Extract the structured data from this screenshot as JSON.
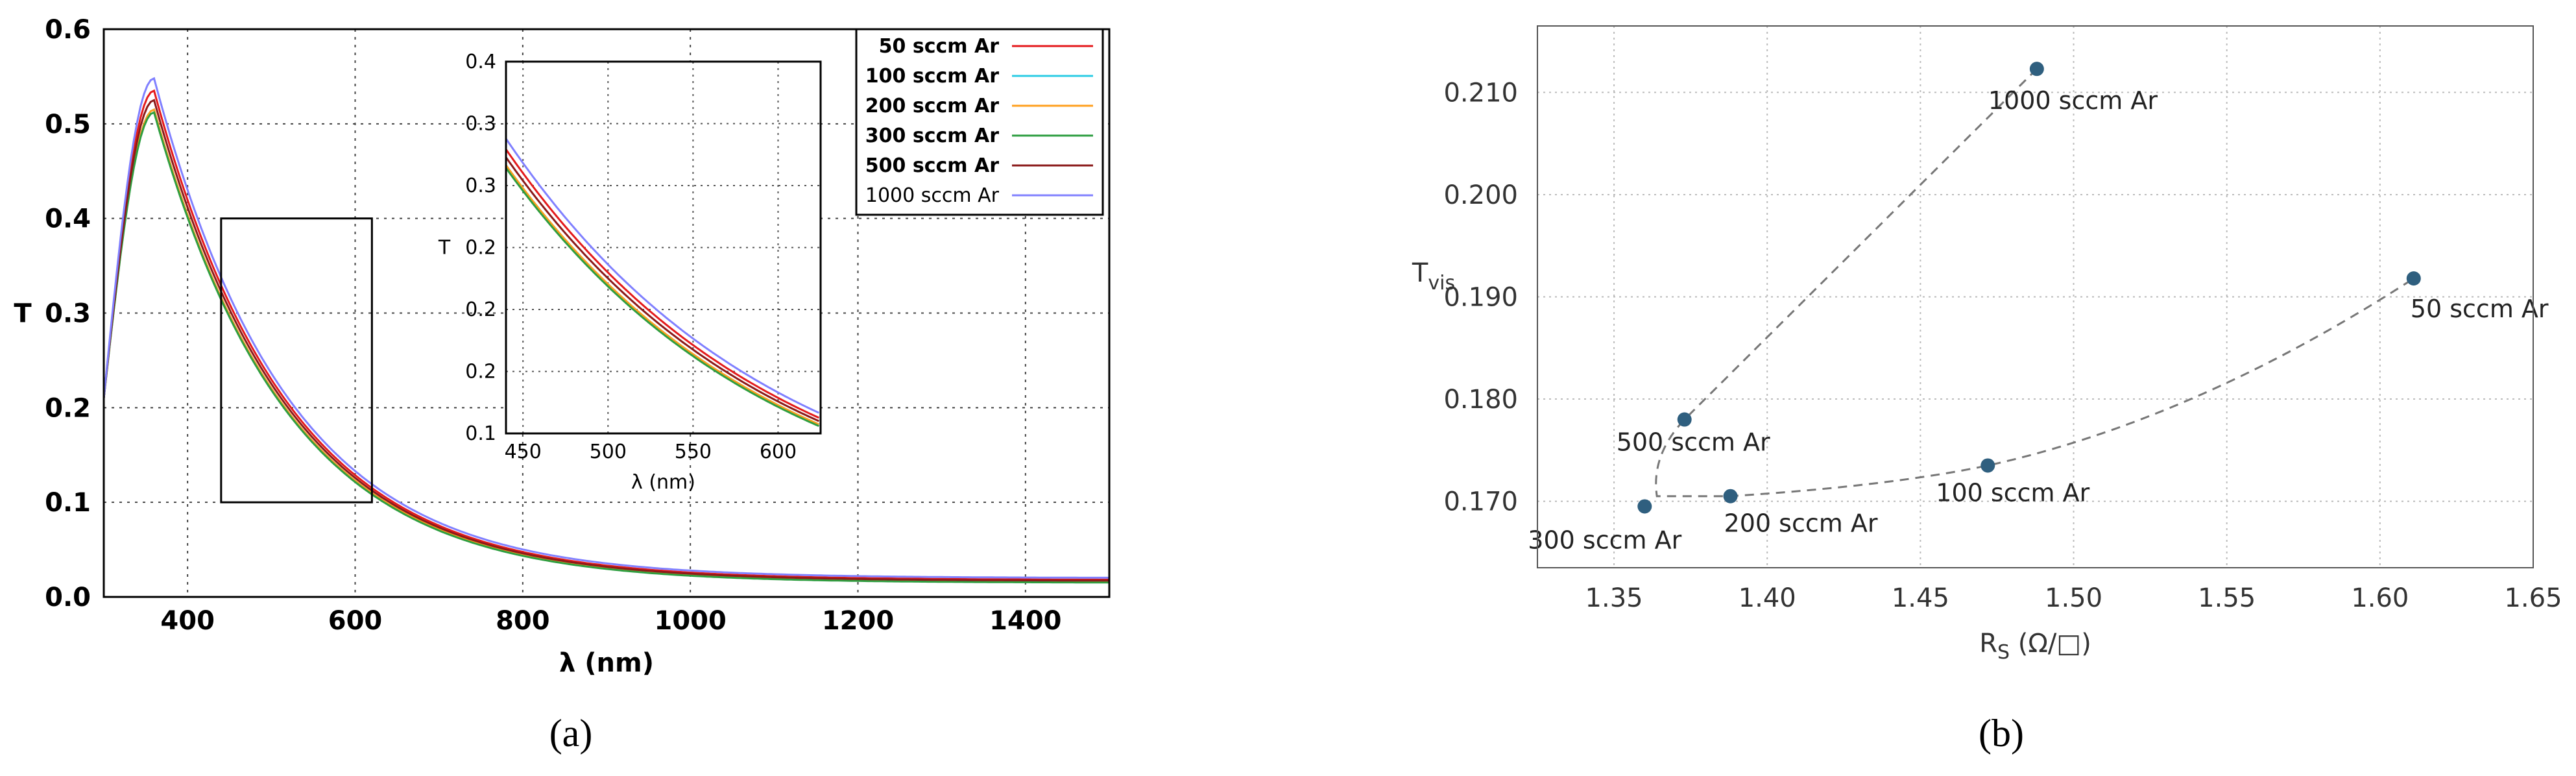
{
  "panel_labels": {
    "a": "(a)",
    "b": "(b)"
  },
  "chart_data": [
    {
      "type": "line",
      "xlabel": "λ (nm)",
      "ylabel": "T",
      "xlim": [
        300,
        1500
      ],
      "ylim": [
        0,
        0.6
      ],
      "xticks": [
        "400",
        "600",
        "800",
        "1000",
        "1200",
        "1400"
      ],
      "yticks": [
        "0.0",
        "0.1",
        "0.2",
        "0.3",
        "0.4",
        "0.5",
        "0.6"
      ],
      "grid": true,
      "legend_position": "top-right",
      "series": [
        {
          "name": "50 sccm Ar",
          "color": "#e41a1c",
          "peak": 0.535,
          "tail": 0.018
        },
        {
          "name": "100 sccm Ar",
          "color": "#2ccce4",
          "peak": 0.515,
          "tail": 0.016
        },
        {
          "name": "200 sccm Ar",
          "color": "#ff9f1c",
          "peak": 0.515,
          "tail": 0.016
        },
        {
          "name": "300 sccm Ar",
          "color": "#2e9e40",
          "peak": 0.512,
          "tail": 0.015
        },
        {
          "name": "500 sccm Ar",
          "color": "#8b1a1a",
          "peak": 0.525,
          "tail": 0.017
        },
        {
          "name": "1000 sccm Ar",
          "color": "#8080ff",
          "peak": 0.548,
          "tail": 0.02
        }
      ],
      "zoom_box": {
        "x": [
          440,
          620
        ],
        "y": [
          0.1,
          0.4
        ]
      },
      "inset": {
        "xlabel": "λ (nm)",
        "ylabel": "T",
        "xlim": [
          440,
          625
        ],
        "ylim": [
          0.1,
          0.4
        ],
        "xticks": [
          "450",
          "500",
          "550",
          "600"
        ],
        "yticks": [
          "0.1",
          "0.2",
          "0.2",
          "0.2",
          "0.3",
          "0.3",
          "0.4"
        ]
      }
    },
    {
      "type": "scatter",
      "xlabel": "R",
      "xlabel_sub": "S",
      "xlabel_unit": "(Ω/□)",
      "ylabel": "T",
      "ylabel_sub": "vis",
      "xlim": [
        1.325,
        1.65
      ],
      "ylim": [
        0.1635,
        0.2165
      ],
      "xticks": [
        "1.35",
        "1.40",
        "1.45",
        "1.50",
        "1.55",
        "1.60",
        "1.65"
      ],
      "yticks": [
        "0.170",
        "0.180",
        "0.190",
        "0.200",
        "0.210"
      ],
      "grid": true,
      "points": [
        {
          "label": "50 sccm Ar",
          "x": 1.611,
          "y": 0.1918
        },
        {
          "label": "100 sccm Ar",
          "x": 1.472,
          "y": 0.1735
        },
        {
          "label": "200 sccm Ar",
          "x": 1.388,
          "y": 0.1705
        },
        {
          "label": "300 sccm Ar",
          "x": 1.36,
          "y": 0.1695
        },
        {
          "label": "500 sccm Ar",
          "x": 1.373,
          "y": 0.178
        },
        {
          "label": "1000 sccm Ar",
          "x": 1.488,
          "y": 0.2123
        }
      ],
      "point_color": "#2f5f7f"
    }
  ]
}
